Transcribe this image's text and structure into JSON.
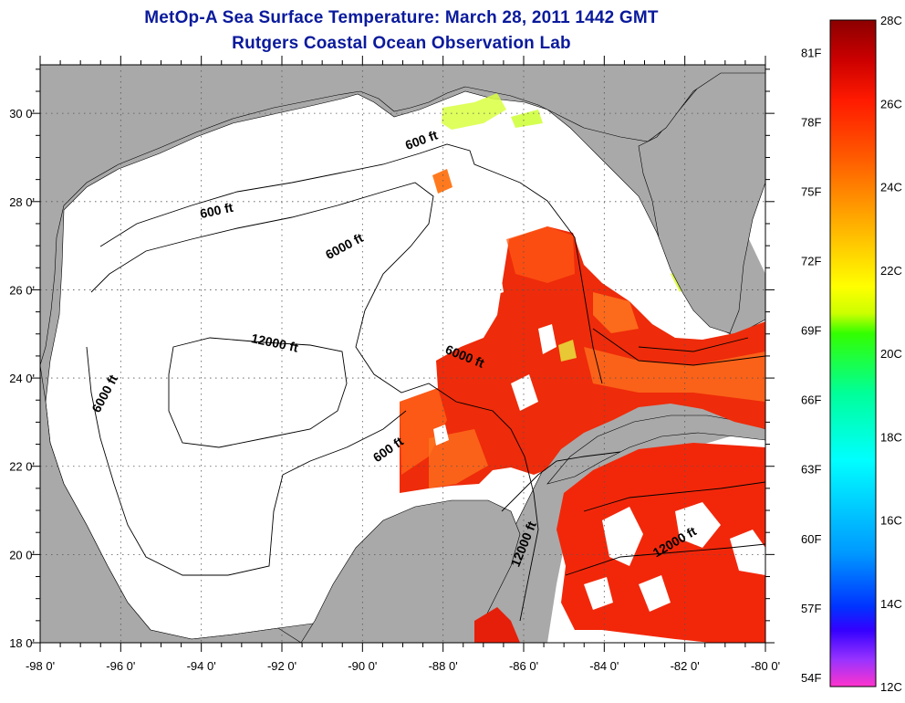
{
  "title": {
    "line1": "MetOp-A Sea Surface Temperature:  March 28, 2011 1442 GMT",
    "line2": "Rutgers Coastal Ocean Observation Lab"
  },
  "map": {
    "lon_ticks": [
      "-98 0'",
      "-96 0'",
      "-94 0'",
      "-92 0'",
      "-90 0'",
      "-88 0'",
      "-86 0'",
      "-84 0'",
      "-82 0'",
      "-80 0'"
    ],
    "lat_ticks": [
      "30 0'",
      "28 0'",
      "26 0'",
      "24 0'",
      "22 0'",
      "20 0'",
      "18 0'"
    ],
    "land_color": "#a9a9a9",
    "water_no_data_color": "#ffffff",
    "contour_labels": [
      {
        "text": "600 ft",
        "lon": -93.6,
        "lat": 27.7,
        "rot": -12
      },
      {
        "text": "600 ft",
        "lon": -88.5,
        "lat": 29.3,
        "rot": -20
      },
      {
        "text": "6000 ft",
        "lon": -90.4,
        "lat": 26.9,
        "rot": -28
      },
      {
        "text": "6000 ft",
        "lon": -96.3,
        "lat": 23.6,
        "rot": -62
      },
      {
        "text": "12000 ft",
        "lon": -92.2,
        "lat": 24.7,
        "rot": 12
      },
      {
        "text": "6000 ft",
        "lon": -87.5,
        "lat": 24.4,
        "rot": 22
      },
      {
        "text": "600 ft",
        "lon": -89.3,
        "lat": 22.3,
        "rot": -35
      },
      {
        "text": "12000 ft",
        "lon": -85.9,
        "lat": 20.2,
        "rot": -68
      },
      {
        "text": "12000 ft",
        "lon": -82.2,
        "lat": 20.2,
        "rot": -30
      }
    ]
  },
  "colorbar": {
    "celsius_labels": [
      "28C",
      "26C",
      "24C",
      "22C",
      "20C",
      "18C",
      "16C",
      "14C",
      "12C"
    ],
    "fahrenheit_labels": [
      "81F",
      "78F",
      "75F",
      "72F",
      "69F",
      "66F",
      "63F",
      "60F",
      "57F",
      "54F"
    ],
    "stops": [
      "#ff33cc",
      "#9933ff",
      "#3300ff",
      "#0033ff",
      "#0099ff",
      "#00ffff",
      "#00ff99",
      "#33ff00",
      "#ccff00",
      "#ffff00",
      "#ffcc00",
      "#ff9900",
      "#ff5500",
      "#ff1a00",
      "#cc0000",
      "#8b0000"
    ]
  }
}
